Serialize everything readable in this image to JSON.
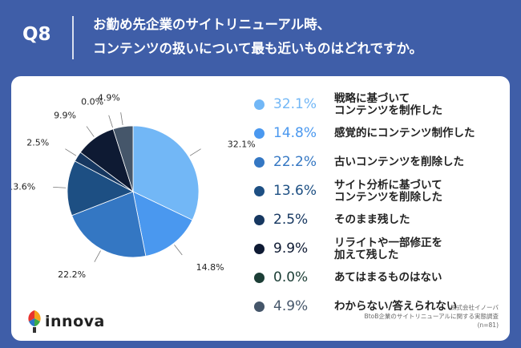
{
  "header": {
    "question": "Q8",
    "title_line1": "お勤め先企業のサイトリニューアル時、",
    "title_line2": "コンテンツの扱いについて最も近いものはどれですか。"
  },
  "chart_data": {
    "type": "pie",
    "slices": [
      {
        "label_line1": "戦略に基づいて",
        "label_line2": "コンテンツを制作した",
        "value": 32.1,
        "display": "32.1%",
        "color": "#72b7f6"
      },
      {
        "label_line1": "感覚的にコンテンツ制作した",
        "label_line2": "",
        "value": 14.8,
        "display": "14.8%",
        "color": "#4a98ef"
      },
      {
        "label_line1": "古いコンテンツを削除した",
        "label_line2": "",
        "value": 22.2,
        "display": "22.2%",
        "color": "#3477c3"
      },
      {
        "label_line1": "サイト分析に基づいて",
        "label_line2": "コンテンツを削除した",
        "value": 13.6,
        "display": "13.6%",
        "color": "#1d4f83"
      },
      {
        "label_line1": "そのまま残した",
        "label_line2": "",
        "value": 2.5,
        "display": "2.5%",
        "color": "#163760"
      },
      {
        "label_line1": "リライトや一部修正を",
        "label_line2": "加えて残した",
        "value": 9.9,
        "display": "9.9%",
        "color": "#0e1a33"
      },
      {
        "label_line1": "あてはまるものはない",
        "label_line2": "",
        "value": 0.0,
        "display": "0.0%",
        "color": "#1c3e36"
      },
      {
        "label_line1": "わからない/答えられない",
        "label_line2": "",
        "value": 4.9,
        "display": "4.9%",
        "color": "#45566a"
      }
    ]
  },
  "footer": {
    "logo_text": "innova",
    "source_line1": "株式会社イノーバ",
    "source_line2": "BtoB企業のサイトリニューアルに関する実態調査",
    "source_line3": "(n=81)"
  }
}
